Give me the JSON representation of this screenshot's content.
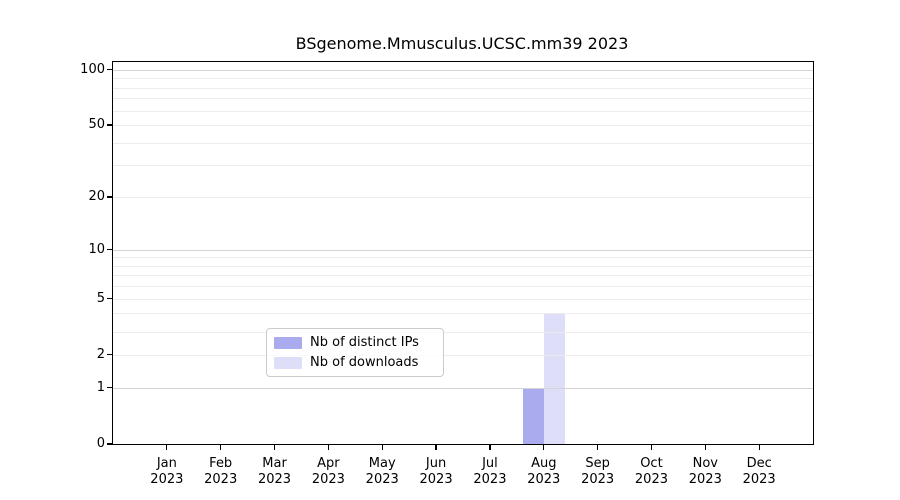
{
  "chart_data": {
    "type": "bar",
    "title": "BSgenome.Mmusculus.UCSC.mm39 2023",
    "x_axis": {
      "months": [
        "Jan",
        "Feb",
        "Mar",
        "Apr",
        "May",
        "Jun",
        "Jul",
        "Aug",
        "Sep",
        "Oct",
        "Nov",
        "Dec"
      ],
      "year_label": "2023"
    },
    "y_axis": {
      "scale": "log1p",
      "tick_values": [
        0,
        1,
        2,
        5,
        10,
        20,
        50,
        100
      ],
      "minor_gridlines": [
        2,
        3,
        4,
        5,
        6,
        7,
        8,
        9,
        20,
        30,
        40,
        50,
        60,
        70,
        80,
        90
      ],
      "major_gridlines": [
        1,
        10,
        100
      ],
      "ymin": 0,
      "ymax": 110
    },
    "series": [
      {
        "name": "Nb of distinct IPs",
        "color": "#aaaaee",
        "values": [
          0,
          0,
          0,
          0,
          0,
          0,
          0,
          1,
          0,
          0,
          0,
          0
        ]
      },
      {
        "name": "Nb of downloads",
        "color": "#dedef8",
        "values": [
          0,
          0,
          0,
          0,
          0,
          0,
          0,
          4,
          0,
          0,
          0,
          0
        ]
      }
    ],
    "legend": {
      "position": "bottom-center",
      "entries": [
        "Nb of distinct IPs",
        "Nb of downloads"
      ]
    },
    "grid": "horizontal-only"
  },
  "colors": {
    "grid_minor": "#ececec",
    "grid_major": "#d4d4d4",
    "axis": "#000000",
    "background": "#ffffff"
  }
}
